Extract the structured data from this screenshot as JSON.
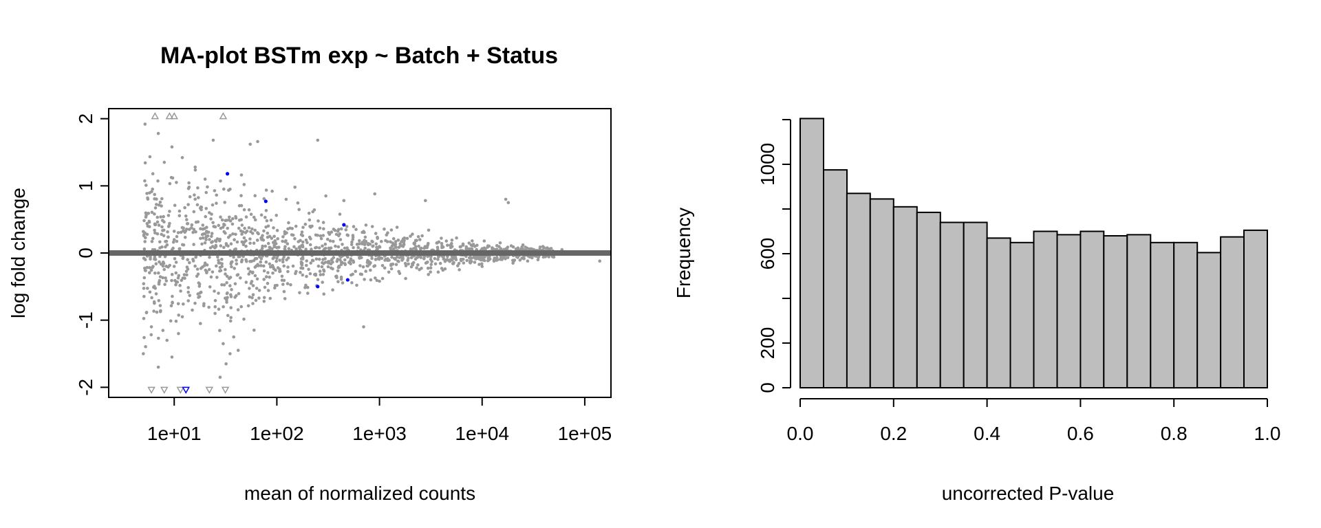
{
  "chart_data": [
    {
      "type": "scatter",
      "title": "MA-plot BSTm exp ~ Batch + Status",
      "xlabel": "mean of normalized counts",
      "ylabel": "log fold change",
      "xscale": "log10",
      "xlim": [
        2.3,
        180000
      ],
      "ylim": [
        -2.15,
        2.15
      ],
      "xticks": [
        10,
        100,
        1000,
        10000,
        100000
      ],
      "xtick_labels": [
        "1e+01",
        "1e+02",
        "1e+03",
        "1e+04",
        "1e+05"
      ],
      "yticks": [
        -2,
        -1,
        0,
        1,
        2
      ],
      "ytick_labels": [
        "-2",
        "-1",
        "0",
        "1",
        "2"
      ],
      "grid": false,
      "point_color": "#999999",
      "significant_color": "#0000ff",
      "hline": {
        "y": 0,
        "color": "#666666"
      },
      "points": [
        [
          5.2,
          1.92
        ],
        [
          7.0,
          1.78
        ],
        [
          9.5,
          1.58
        ],
        [
          12.0,
          1.42
        ],
        [
          16.0,
          1.28
        ],
        [
          24.0,
          1.68
        ],
        [
          65.0,
          1.66
        ],
        [
          55.0,
          1.62
        ],
        [
          250.0,
          1.68
        ],
        [
          8.0,
          1.35
        ],
        [
          6.2,
          1.18
        ],
        [
          10.5,
          1.05
        ],
        [
          14.0,
          0.98
        ],
        [
          20.0,
          1.1
        ],
        [
          35.0,
          0.95
        ],
        [
          48.0,
          1.02
        ],
        [
          90.0,
          0.92
        ],
        [
          150.0,
          0.98
        ],
        [
          300.0,
          0.85
        ],
        [
          450.0,
          0.78
        ],
        [
          900.0,
          0.88
        ],
        [
          2800.0,
          0.78
        ],
        [
          18000.0,
          0.75
        ],
        [
          17000.0,
          0.8
        ],
        [
          5.5,
          0.82
        ],
        [
          7.5,
          0.7
        ],
        [
          9.0,
          0.62
        ],
        [
          13.0,
          0.55
        ],
        [
          22.0,
          0.6
        ],
        [
          40.0,
          0.52
        ],
        [
          80.0,
          0.48
        ],
        [
          130.0,
          0.45
        ],
        [
          220.0,
          0.4
        ],
        [
          400.0,
          0.35
        ],
        [
          700.0,
          0.32
        ],
        [
          1200.0,
          0.3
        ],
        [
          2000.0,
          0.25
        ],
        [
          4000.0,
          0.22
        ],
        [
          8000.0,
          0.18
        ],
        [
          15000.0,
          0.15
        ],
        [
          25000.0,
          0.12
        ],
        [
          40000.0,
          0.08
        ],
        [
          60000.0,
          0.05
        ],
        [
          5.0,
          -1.5
        ],
        [
          6.0,
          -1.1
        ],
        [
          8.5,
          -1.3
        ],
        [
          11.0,
          -1.2
        ],
        [
          18.0,
          -1.05
        ],
        [
          30.0,
          -1.35
        ],
        [
          35.0,
          -1.5
        ],
        [
          32.0,
          -1.65
        ],
        [
          28.0,
          -1.85
        ],
        [
          42.0,
          -1.45
        ],
        [
          38.0,
          -1.25
        ],
        [
          60.0,
          -1.15
        ],
        [
          700.0,
          -1.1
        ],
        [
          7.0,
          -1.7
        ],
        [
          9.5,
          -1.55
        ],
        [
          12.0,
          -0.95
        ],
        [
          15.0,
          -0.85
        ],
        [
          25.0,
          -0.9
        ],
        [
          45.0,
          -0.8
        ],
        [
          75.0,
          -0.72
        ],
        [
          120.0,
          -0.68
        ],
        [
          200.0,
          -0.6
        ],
        [
          350.0,
          -0.55
        ],
        [
          600.0,
          -0.48
        ],
        [
          1000.0,
          -0.42
        ],
        [
          1800.0,
          -0.38
        ],
        [
          3000.0,
          -0.32
        ],
        [
          6000.0,
          -0.25
        ],
        [
          10000.0,
          -0.2
        ],
        [
          20000.0,
          -0.15
        ],
        [
          35000.0,
          -0.1
        ],
        [
          50000.0,
          -0.06
        ],
        [
          140000.0,
          -0.12
        ],
        [
          6.5,
          0.3
        ],
        [
          6.5,
          -0.3
        ],
        [
          10.0,
          0.2
        ],
        [
          10.0,
          -0.2
        ],
        [
          20.0,
          0.15
        ],
        [
          20.0,
          -0.15
        ],
        [
          50.0,
          0.1
        ],
        [
          50.0,
          -0.1
        ],
        [
          100.0,
          0.08
        ],
        [
          100.0,
          -0.08
        ]
      ],
      "significant_points": [
        [
          33.0,
          1.18
        ],
        [
          78.0,
          0.77
        ],
        [
          450.0,
          0.42
        ],
        [
          250.0,
          -0.5
        ],
        [
          490.0,
          -0.4
        ]
      ],
      "upper_clipped_points": [
        6.5,
        9.0,
        10.0,
        30.0
      ],
      "lower_clipped_points": [
        6.0,
        8.0,
        11.5,
        22.0,
        31.5
      ],
      "significant_lower_clipped_points": [
        13.0
      ]
    },
    {
      "type": "bar",
      "subtype": "histogram",
      "title": "",
      "xlabel": "uncorrected P-value",
      "ylabel": "Frequency",
      "xlim": [
        0,
        1
      ],
      "ylim": [
        0,
        1200
      ],
      "xticks": [
        0.0,
        0.2,
        0.4,
        0.6,
        0.8,
        1.0
      ],
      "xtick_labels": [
        "0.0",
        "0.2",
        "0.4",
        "0.6",
        "0.8",
        "1.0"
      ],
      "yticks": [
        0,
        200,
        600,
        1000
      ],
      "ytick_labels": [
        "0",
        "200",
        "600",
        "1000"
      ],
      "bar_color": "#bebebe",
      "bin_width": 0.05,
      "bins": [
        0.0,
        0.05,
        0.1,
        0.15,
        0.2,
        0.25,
        0.3,
        0.35,
        0.4,
        0.45,
        0.5,
        0.55,
        0.6,
        0.65,
        0.7,
        0.75,
        0.8,
        0.85,
        0.9,
        0.95
      ],
      "values": [
        1205,
        975,
        870,
        845,
        810,
        785,
        740,
        740,
        670,
        650,
        700,
        685,
        700,
        680,
        685,
        650,
        650,
        605,
        675,
        705
      ]
    }
  ]
}
